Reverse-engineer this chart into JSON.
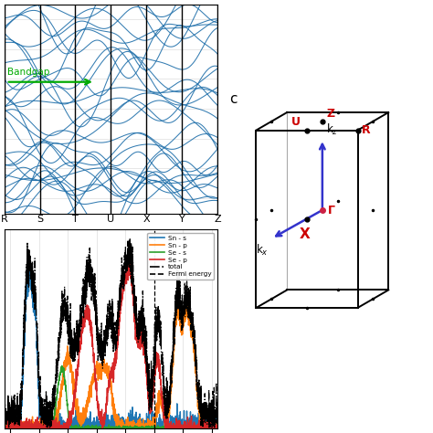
{
  "band_structure": {
    "kpoints_labels": [
      "R",
      "S",
      "T",
      "U",
      "X",
      "Y",
      "Z"
    ],
    "kpoints_positions": [
      0,
      1,
      2,
      3,
      4,
      5,
      6
    ],
    "energy_min": -3.5,
    "energy_max": 3.5,
    "line_color": "#1f6faa",
    "bandgap_text": "Bandgap",
    "bandgap_color": "#00aa00",
    "bg_color": "#ffffff",
    "grid_color": "#dddddd"
  },
  "dos": {
    "xmin": -13.0,
    "xmax": 5.5,
    "legend_items": [
      {
        "label": "Sn - s",
        "color": "#1f77b4"
      },
      {
        "label": "Sn - p",
        "color": "#ff7f0e"
      },
      {
        "label": "Se - s",
        "color": "#2ca02c"
      },
      {
        "label": "Se - p",
        "color": "#d62728"
      },
      {
        "label": "total",
        "color": "#000000",
        "ls": "dashdot"
      },
      {
        "label": "Fermi energy",
        "color": "#000000",
        "ls": "dashed"
      }
    ]
  },
  "bz": {
    "label": "c",
    "box_color": "#000000",
    "back_edge_color": "#aaaaaa",
    "arrow_color": "#2244cc",
    "red_label_color": "#cc0000",
    "gamma_dot_color": "#cc0000"
  }
}
